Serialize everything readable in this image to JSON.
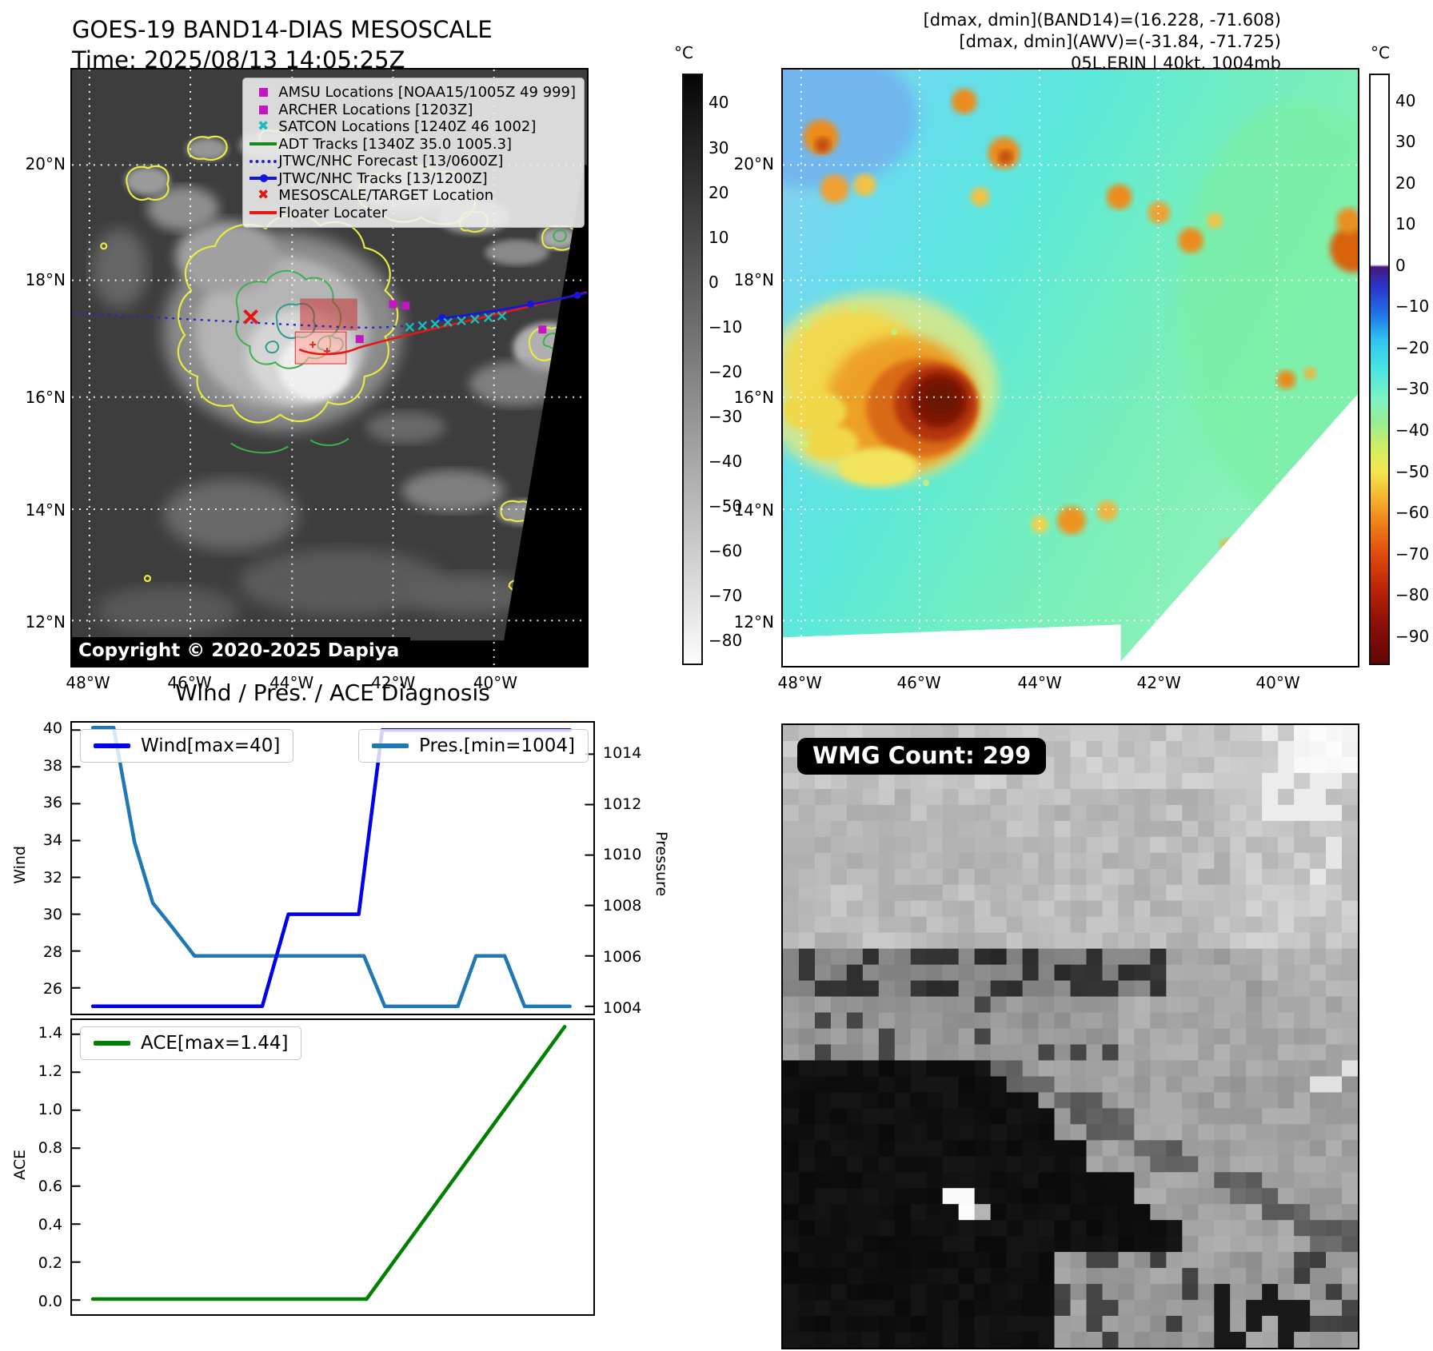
{
  "band14": {
    "title": "GOES-19 BAND14-DIAS MESOSCALE",
    "time_line": "Time: 2025/08/13 14:05:25Z",
    "copyright": "Copyright © 2020-2025 Dapiya",
    "legend": [
      {
        "marker": "square",
        "color": "#c417c4",
        "label": "AMSU Locations [NOAA15/1005Z 49 999]"
      },
      {
        "marker": "square",
        "color": "#c417c4",
        "label": "ARCHER Locations [1203Z]"
      },
      {
        "marker": "x",
        "color": "#19bcbc",
        "label": "SATCON Locations [1240Z 46 1002]"
      },
      {
        "marker": "line",
        "color": "#1a8a1a",
        "label": "ADT Tracks [1340Z 35.0 1005.3]"
      },
      {
        "marker": "dotted",
        "color": "#2228c8",
        "label": "JTWC/NHC Forecast [13/0600Z]"
      },
      {
        "marker": "linedot",
        "color": "#1515e0",
        "label": "JTWC/NHC Tracks [13/1200Z]"
      },
      {
        "marker": "x",
        "color": "#e51515",
        "label": "MESOSCALE/TARGET Location"
      },
      {
        "marker": "line",
        "color": "#e51818",
        "label": "Floater Locater"
      }
    ],
    "lat_ticks": [
      {
        "label": "20°N",
        "f": 0.16
      },
      {
        "label": "18°N",
        "f": 0.353
      },
      {
        "label": "16°N",
        "f": 0.549
      },
      {
        "label": "14°N",
        "f": 0.737
      },
      {
        "label": "12°N",
        "f": 0.924
      }
    ],
    "lon_ticks": [
      {
        "label": "48°W",
        "f": 0.034
      },
      {
        "label": "46°W",
        "f": 0.23
      },
      {
        "label": "44°W",
        "f": 0.427
      },
      {
        "label": "42°W",
        "f": 0.623
      },
      {
        "label": "40°W",
        "f": 0.82
      }
    ],
    "colorbar": {
      "unit": "°C",
      "range": [
        46.5,
        -85.5
      ],
      "ticks": [
        40,
        30,
        20,
        10,
        0,
        -10,
        -20,
        -30,
        -40,
        -50,
        -60,
        -70,
        -80
      ]
    }
  },
  "awv": {
    "info_lines": [
      "[dmax, dmin](BAND14)=(16.228, -71.608)",
      "[dmax, dmin](AWV)=(-31.84, -71.725)",
      "05L.ERIN | 40kt, 1004mb"
    ],
    "lat_ticks": [
      {
        "label": "20°N",
        "f": 0.16
      },
      {
        "label": "18°N",
        "f": 0.353
      },
      {
        "label": "16°N",
        "f": 0.549
      },
      {
        "label": "14°N",
        "f": 0.737
      },
      {
        "label": "12°N",
        "f": 0.924
      }
    ],
    "lon_ticks": [
      {
        "label": "48°W",
        "f": 0.032
      },
      {
        "label": "46°W",
        "f": 0.238
      },
      {
        "label": "44°W",
        "f": 0.447
      },
      {
        "label": "42°W",
        "f": 0.653
      },
      {
        "label": "40°W",
        "f": 0.859
      }
    ],
    "colorbar": {
      "unit": "°C",
      "range": [
        46.5,
        -97.0
      ],
      "ticks": [
        40,
        30,
        20,
        10,
        0,
        -10,
        -20,
        -30,
        -40,
        -50,
        -60,
        -70,
        -80,
        -90
      ]
    }
  },
  "wmg": {
    "count_label": "WMG Count: 299"
  },
  "chart_data": [
    {
      "type": "line",
      "title": "Wind / Pres. / ACE Diagnosis",
      "panel": "wind_pres",
      "ylabel_left": "Wind",
      "ylabel_right": "Pressure",
      "ylim_left": [
        24.6,
        40.4
      ],
      "ylim_right": [
        1003.71,
        1015.25
      ],
      "yticks_left": [
        "40",
        "38",
        "36",
        "34",
        "32",
        "30",
        "28",
        "26"
      ],
      "yticks_right": [
        "1014",
        "1012",
        "1010",
        "1008",
        "1006",
        "1004"
      ],
      "grid": false,
      "legend_position": "upper-left / upper-right",
      "series": [
        {
          "name": "Wind[max=40]",
          "color": "#0000ee",
          "axis": "left",
          "x": [
            0.04,
            0.365,
            0.415,
            0.55,
            0.595,
            0.955
          ],
          "values": [
            25,
            25,
            30,
            30,
            40,
            40
          ]
        },
        {
          "name": "Pres.[min=1004]",
          "color": "#1f77b4",
          "axis": "right",
          "x": [
            0.04,
            0.08,
            0.12,
            0.155,
            0.19,
            0.235,
            0.56,
            0.6,
            0.74,
            0.775,
            0.83,
            0.868,
            0.955
          ],
          "values": [
            1015.05,
            1015.05,
            1010.5,
            1008.1,
            1007.2,
            1006,
            1006,
            1004,
            1004,
            1006,
            1006,
            1004,
            1004
          ]
        }
      ]
    },
    {
      "type": "line",
      "panel": "ace",
      "ylabel_left": "ACE",
      "ylim_left": [
        -0.075,
        1.475
      ],
      "yticks_left": [
        "1.4",
        "1.2",
        "1.0",
        "0.8",
        "0.6",
        "0.4",
        "0.2",
        "0.0"
      ],
      "grid": false,
      "legend_position": "upper-left",
      "series": [
        {
          "name": "ACE[max=1.44]",
          "color": "#008000",
          "axis": "left",
          "x": [
            0.04,
            0.565,
            0.945
          ],
          "values": [
            0.005,
            0.005,
            1.44
          ]
        }
      ]
    }
  ]
}
